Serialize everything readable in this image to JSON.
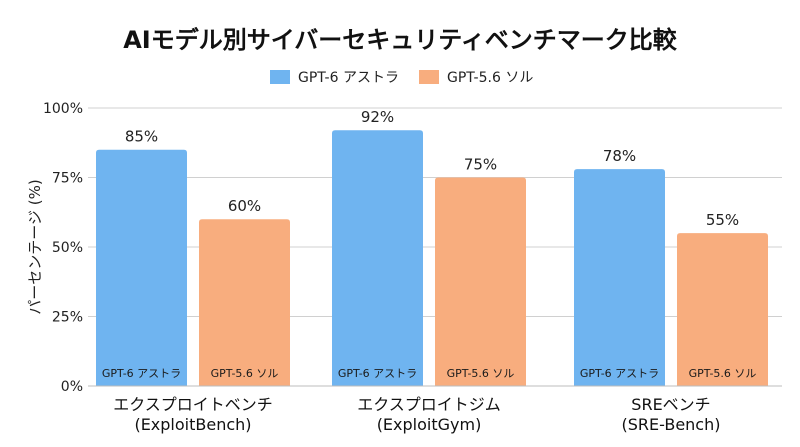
{
  "chart_data": {
    "type": "bar",
    "title": "AIモデル別サイバーセキュリティベンチマーク比較",
    "ylabel": "パーセンテージ (%)",
    "xlabel": "",
    "ylim": [
      0,
      100
    ],
    "yticks": [
      0,
      25,
      50,
      75,
      100
    ],
    "ytick_labels": [
      "0%",
      "25%",
      "50%",
      "75%",
      "100%"
    ],
    "grid": "horizontal",
    "legend_position": "top-center",
    "categories": [
      [
        "エクスプロイトベンチ",
        "(ExploitBench)"
      ],
      [
        "エクスプロイトジム",
        "(ExploitGym)"
      ],
      [
        "SREベンチ",
        "(SRE-Bench)"
      ]
    ],
    "series": [
      {
        "name": "GPT-6 アストラ",
        "color": "#6fb4f0",
        "values": [
          85,
          92,
          78
        ],
        "value_labels": [
          "85%",
          "92%",
          "78%"
        ]
      },
      {
        "name": "GPT-5.6 ソル",
        "color": "#f8ad7e",
        "values": [
          60,
          75,
          55
        ],
        "value_labels": [
          "60%",
          "75%",
          "55%"
        ]
      }
    ]
  }
}
